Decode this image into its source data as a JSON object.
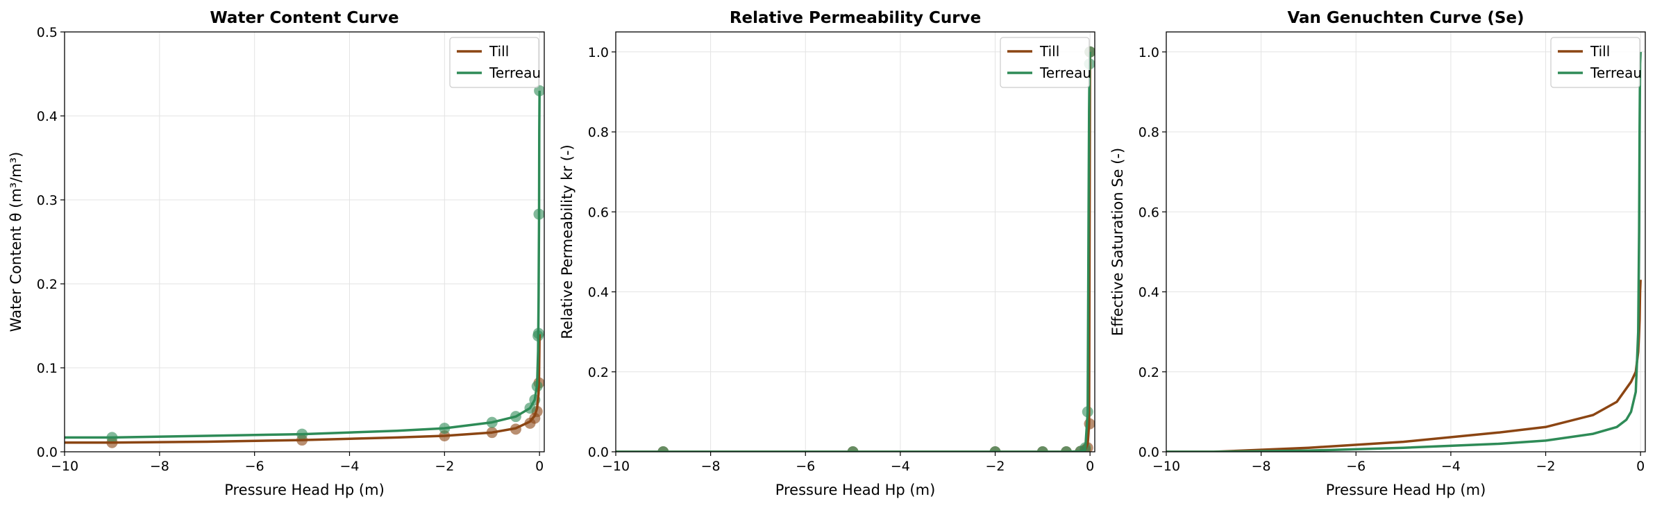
{
  "chart_data": [
    {
      "type": "line",
      "title": "Water Content Curve",
      "xlabel": "Pressure Head Hp (m)",
      "ylabel": "Water Content θ (m³/m³)",
      "xlim": [
        -10,
        0.1
      ],
      "ylim": [
        0,
        0.5
      ],
      "xticks": [
        -10,
        -8,
        -6,
        -4,
        -2,
        0
      ],
      "yticks": [
        0.0,
        0.1,
        0.2,
        0.3,
        0.4,
        0.5
      ],
      "xtick_labels": [
        "−10",
        "−8",
        "−6",
        "−4",
        "−2",
        "0"
      ],
      "ytick_labels": [
        "0.0",
        "0.1",
        "0.2",
        "0.3",
        "0.4",
        "0.5"
      ],
      "grid": true,
      "legend": "top-right",
      "series": [
        {
          "name": "Till",
          "color": "#8b4513",
          "x": [
            -10,
            -9,
            -7,
            -5,
            -3,
            -2,
            -1,
            -0.5,
            -0.2,
            -0.1,
            -0.05,
            -0.02,
            -0.01,
            0
          ],
          "y": [
            0.011,
            0.011,
            0.012,
            0.014,
            0.017,
            0.019,
            0.023,
            0.028,
            0.036,
            0.043,
            0.052,
            0.07,
            0.09,
            0.14
          ],
          "points_x": [
            -9,
            -5,
            -2,
            -1,
            -0.5,
            -0.2,
            -0.1,
            -0.05,
            -0.01
          ],
          "points_y": [
            0.011,
            0.014,
            0.019,
            0.023,
            0.027,
            0.034,
            0.04,
            0.048,
            0.082
          ]
        },
        {
          "name": "Terreau",
          "color": "#2e8b57",
          "x": [
            -10,
            -9,
            -7,
            -5,
            -3,
            -2,
            -1,
            -0.5,
            -0.2,
            -0.1,
            -0.05,
            -0.03,
            -0.02,
            -0.01,
            -0.005,
            0
          ],
          "y": [
            0.017,
            0.017,
            0.019,
            0.021,
            0.025,
            0.028,
            0.035,
            0.042,
            0.052,
            0.062,
            0.08,
            0.12,
            0.18,
            0.28,
            0.38,
            0.43
          ],
          "points_x": [
            -9,
            -5,
            -2,
            -1,
            -0.5,
            -0.2,
            -0.1,
            -0.05,
            -0.03,
            -0.02,
            -0.01,
            0
          ],
          "points_y": [
            0.017,
            0.021,
            0.028,
            0.035,
            0.042,
            0.052,
            0.062,
            0.078,
            0.138,
            0.141,
            0.283,
            0.43
          ]
        }
      ]
    },
    {
      "type": "line",
      "title": "Relative Permeability Curve",
      "xlabel": "Pressure Head Hp (m)",
      "ylabel": "Relative Permeability kr (-)",
      "xlim": [
        -10,
        0.1
      ],
      "ylim": [
        0,
        1.05
      ],
      "xticks": [
        -10,
        -8,
        -6,
        -4,
        -2,
        0
      ],
      "yticks": [
        0.0,
        0.2,
        0.4,
        0.6,
        0.8,
        1.0
      ],
      "xtick_labels": [
        "−10",
        "−8",
        "−6",
        "−4",
        "−2",
        "0"
      ],
      "ytick_labels": [
        "0.0",
        "0.2",
        "0.4",
        "0.6",
        "0.8",
        "1.0"
      ],
      "grid": true,
      "legend": "top-right",
      "series": [
        {
          "name": "Till",
          "color": "#8b4513",
          "x": [
            -10,
            -2,
            -1,
            -0.5,
            -0.2,
            -0.1,
            -0.05,
            -0.02,
            0
          ],
          "y": [
            0,
            0,
            0,
            0,
            0.001,
            0.005,
            0.02,
            0.07,
            1.0
          ],
          "points_x": [
            -9,
            -5,
            -2,
            -1,
            -0.5,
            -0.2,
            -0.1,
            -0.05,
            -0.01,
            0
          ],
          "points_y": [
            0,
            0,
            0,
            0,
            0,
            0.001,
            0.005,
            0.01,
            0.07,
            1.0
          ]
        },
        {
          "name": "Terreau",
          "color": "#2e8b57",
          "x": [
            -10,
            -2,
            -1,
            -0.5,
            -0.2,
            -0.1,
            -0.05,
            -0.03,
            -0.02,
            -0.01,
            0
          ],
          "y": [
            0,
            0,
            0,
            0,
            0.001,
            0.005,
            0.1,
            0.6,
            0.85,
            0.97,
            1.0
          ],
          "points_x": [
            -9,
            -5,
            -2,
            -1,
            -0.5,
            -0.2,
            -0.1,
            -0.05,
            -0.01,
            0
          ],
          "points_y": [
            0,
            0,
            0,
            0,
            0,
            0.001,
            0.01,
            0.1,
            0.97,
            1.0
          ]
        }
      ]
    },
    {
      "type": "line",
      "title": "Van Genuchten Curve (Se)",
      "xlabel": "Pressure Head Hp (m)",
      "ylabel": "Effective Saturation Se (-)",
      "xlim": [
        -10,
        0.1
      ],
      "ylim": [
        0,
        1.05
      ],
      "xticks": [
        -10,
        -8,
        -6,
        -4,
        -2,
        0
      ],
      "yticks": [
        0.0,
        0.2,
        0.4,
        0.6,
        0.8,
        1.0
      ],
      "xtick_labels": [
        "−10",
        "−8",
        "−6",
        "−4",
        "−2",
        "0"
      ],
      "ytick_labels": [
        "0.0",
        "0.2",
        "0.4",
        "0.6",
        "0.8",
        "1.0"
      ],
      "grid": true,
      "legend": "top-right",
      "series": [
        {
          "name": "Till",
          "color": "#8b4513",
          "x": [
            -10,
            -9,
            -7,
            -5,
            -3,
            -2,
            -1,
            -0.5,
            -0.2,
            -0.1,
            -0.05,
            -0.02,
            -0.01,
            0
          ],
          "y": [
            0,
            0,
            0.01,
            0.025,
            0.048,
            0.062,
            0.092,
            0.125,
            0.175,
            0.2,
            0.25,
            0.33,
            0.4,
            0.43
          ]
        },
        {
          "name": "Terreau",
          "color": "#2e8b57",
          "x": [
            -10,
            -9,
            -7,
            -5,
            -3,
            -2,
            -1,
            -0.5,
            -0.3,
            -0.2,
            -0.1,
            -0.05,
            -0.03,
            -0.02,
            -0.01,
            0
          ],
          "y": [
            0,
            0,
            0.003,
            0.01,
            0.02,
            0.028,
            0.045,
            0.062,
            0.08,
            0.1,
            0.15,
            0.3,
            0.55,
            0.8,
            0.97,
            1.0
          ]
        }
      ]
    }
  ]
}
